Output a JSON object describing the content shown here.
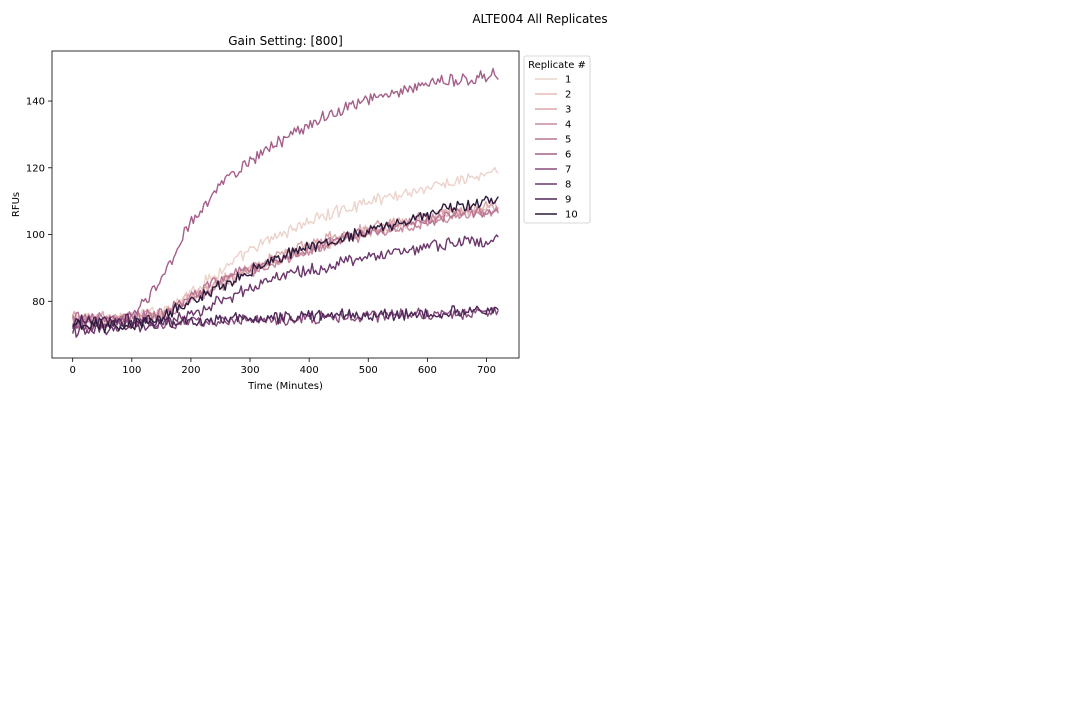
{
  "figure": {
    "suptitle": "ALTE004 All Replicates"
  },
  "chart_data": {
    "type": "line",
    "title": "Gain Setting: [800]",
    "xlabel": "Time (Minutes)",
    "ylabel": "RFUs",
    "xlim": [
      -35,
      755
    ],
    "ylim": [
      63,
      155
    ],
    "xticks": [
      0,
      100,
      200,
      300,
      400,
      500,
      600,
      700
    ],
    "yticks": [
      80,
      100,
      120,
      140
    ],
    "grid": false,
    "legend": {
      "title": "Replicate #",
      "placement": "outside-right"
    },
    "x_step": 3,
    "x_max": 720,
    "series": [
      {
        "name": "1",
        "color": "#ecd3cc",
        "x": [
          0,
          60,
          100,
          150,
          200,
          250,
          300,
          350,
          400,
          450,
          500,
          550,
          600,
          650,
          700,
          720
        ],
        "values": [
          75,
          75,
          75.5,
          77,
          83,
          89,
          95,
          100,
          104,
          107,
          110,
          112,
          114,
          116,
          118,
          118.5
        ]
      },
      {
        "name": "2",
        "color": "#e5bab6",
        "x": [
          0,
          60,
          100,
          150,
          200,
          250,
          300,
          350,
          400,
          450,
          500,
          550,
          600,
          650,
          700,
          720
        ],
        "values": [
          74,
          74,
          74.5,
          76,
          81,
          86,
          90,
          93,
          96,
          98.5,
          101,
          103,
          105,
          106.5,
          108,
          108.5
        ]
      },
      {
        "name": "3",
        "color": "#dba8aa",
        "x": [
          0,
          60,
          100,
          150,
          200,
          250,
          300,
          350,
          400,
          450,
          500,
          550,
          600,
          650,
          700,
          720
        ],
        "values": [
          75,
          75,
          75,
          76.5,
          81,
          86,
          90.5,
          94,
          97,
          99.5,
          102,
          104,
          105.5,
          107,
          108,
          108.5
        ]
      },
      {
        "name": "4",
        "color": "#c98b9e",
        "x": [
          0,
          60,
          100,
          150,
          200,
          250,
          300,
          350,
          400,
          450,
          500,
          550,
          600,
          650,
          700,
          720
        ],
        "values": [
          74,
          74,
          74.5,
          75.5,
          80,
          85,
          89,
          92,
          95,
          97.5,
          100,
          102,
          104,
          105.5,
          107,
          107.5
        ]
      },
      {
        "name": "5",
        "color": "#b97594",
        "x": [
          0,
          60,
          100,
          150,
          200,
          250,
          300,
          350,
          400,
          450,
          500,
          550,
          600,
          650,
          700,
          720
        ],
        "values": [
          75,
          75,
          75.5,
          76.5,
          81.5,
          86.5,
          90,
          93,
          96,
          98.5,
          101,
          103,
          104.5,
          106,
          107,
          107.5
        ]
      },
      {
        "name": "6",
        "color": "#a5608a",
        "x": [
          0,
          50,
          100,
          130,
          160,
          200,
          250,
          300,
          350,
          400,
          450,
          500,
          550,
          600,
          650,
          700,
          720
        ],
        "values": [
          72,
          73,
          76,
          81,
          90,
          104,
          115,
          122,
          128,
          133,
          137,
          140.5,
          143,
          145,
          146.5,
          147.5,
          148
        ]
      },
      {
        "name": "7",
        "color": "#8a4c7e",
        "x": [
          0,
          100,
          200,
          300,
          400,
          500,
          600,
          700,
          720
        ],
        "values": [
          73,
          73,
          74,
          74.5,
          75,
          75.5,
          76,
          76.5,
          76.5
        ]
      },
      {
        "name": "8",
        "color": "#6c386c",
        "x": [
          0,
          60,
          100,
          150,
          200,
          250,
          300,
          350,
          400,
          450,
          500,
          550,
          600,
          650,
          700,
          720
        ],
        "values": [
          71,
          71,
          72,
          73,
          76,
          80,
          84,
          87,
          89.5,
          91.5,
          93.5,
          95,
          96.5,
          97.5,
          98,
          98
        ]
      },
      {
        "name": "9",
        "color": "#4e2758",
        "x": [
          0,
          100,
          200,
          300,
          400,
          500,
          600,
          700,
          720
        ],
        "values": [
          74,
          74,
          74,
          75,
          75.5,
          76,
          76.5,
          77,
          77
        ]
      },
      {
        "name": "10",
        "color": "#2d1a3b",
        "x": [
          0,
          60,
          100,
          150,
          200,
          250,
          300,
          350,
          400,
          450,
          500,
          550,
          600,
          650,
          700,
          720
        ],
        "values": [
          73,
          72.5,
          73,
          75,
          80,
          84.5,
          89,
          93,
          96,
          98.5,
          101,
          103.5,
          106,
          108,
          110,
          110.5
        ]
      }
    ]
  }
}
